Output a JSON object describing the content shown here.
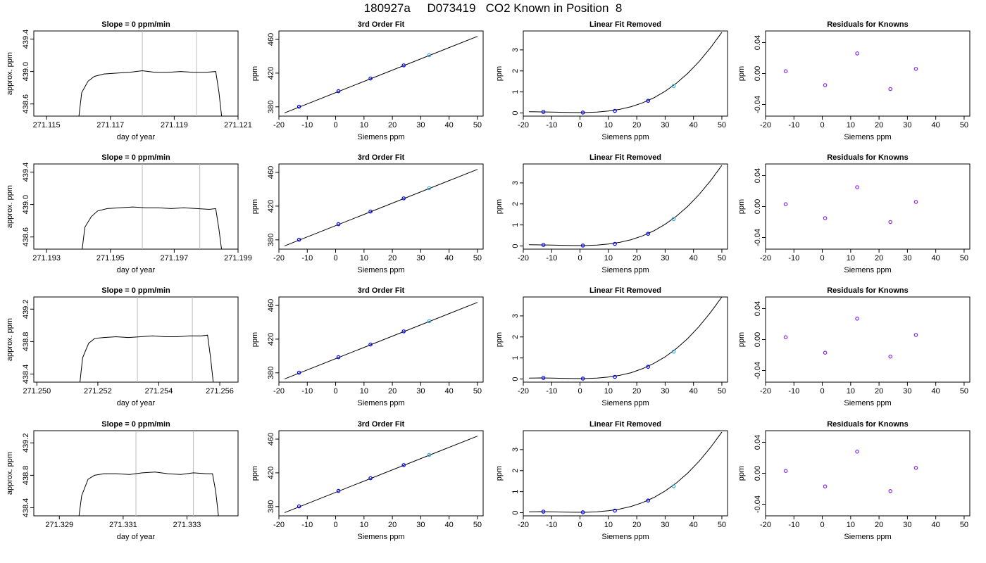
{
  "figure_title": "180927a     D073419   CO2 Known in Position  8",
  "colors": {
    "curve": "#000000",
    "point_blue": "#0000ff",
    "point_purple": "#8a2be2",
    "point_cyan": "#33aadd",
    "vline": "#bdbdbd"
  },
  "chart_data": [
    {
      "type": "line",
      "title": "Slope =  0  ppm/min",
      "xlabel": "day of year",
      "ylabel": "approx. ppm",
      "xlim": [
        271.1146,
        271.121
      ],
      "ylim": [
        438.45,
        439.5
      ],
      "xticks": [
        "271.115",
        "271.117",
        "271.119",
        "271.121"
      ],
      "yticks": [
        "438.6",
        "439.0",
        "439.4"
      ],
      "vlines": [
        271.118,
        271.1197
      ],
      "trace": {
        "x": [
          271.116,
          271.1161,
          271.1163,
          271.1165,
          271.1168,
          271.1172,
          271.1176,
          271.118,
          271.1184,
          271.1188,
          271.1192,
          271.1196,
          271.12,
          271.1203,
          271.1204,
          271.1205
        ],
        "y": [
          438.4,
          438.74,
          438.88,
          438.94,
          438.97,
          438.98,
          438.99,
          439.01,
          438.99,
          438.99,
          439.0,
          438.99,
          438.99,
          439.0,
          438.75,
          438.4
        ]
      }
    },
    {
      "type": "scatter",
      "title": "3rd Order Fit",
      "xlabel": "Siemens ppm",
      "ylabel": "ppm",
      "xlim": [
        -20,
        52
      ],
      "ylim": [
        369,
        470
      ],
      "xticks": [
        "-20",
        "-10",
        "0",
        "10",
        "20",
        "30",
        "40",
        "50"
      ],
      "yticks": [
        "380",
        "420",
        "460"
      ],
      "line": {
        "x": [
          -18,
          50
        ],
        "y": [
          372.8,
          463.6
        ]
      },
      "points": {
        "x": [
          -12.9,
          1.0,
          12.3,
          24.0,
          33.0
        ],
        "y": [
          380.2,
          398.6,
          413.6,
          429.2,
          441.3
        ]
      }
    },
    {
      "type": "line",
      "title": "Linear Fit Removed",
      "xlabel": "Siemens ppm",
      "ylabel": "ppm",
      "xlim": [
        -20,
        52
      ],
      "ylim": [
        -0.15,
        3.9
      ],
      "xticks": [
        "-20",
        "-10",
        "0",
        "10",
        "20",
        "30",
        "40",
        "50"
      ],
      "yticks": [
        "0",
        "1",
        "2",
        "3"
      ],
      "curve": {
        "x": [
          -18,
          -14,
          -10,
          -6,
          -2,
          2,
          6,
          10,
          14,
          18,
          22,
          26,
          30,
          34,
          38,
          42,
          46,
          50
        ],
        "y": [
          0.06,
          0.05,
          0.04,
          0.03,
          0.02,
          0.02,
          0.04,
          0.09,
          0.17,
          0.3,
          0.48,
          0.72,
          1.03,
          1.42,
          1.89,
          2.45,
          3.1,
          3.83
        ]
      },
      "points": {
        "x": [
          -12.9,
          1.0,
          12.3,
          24.0,
          33.0
        ],
        "y": [
          0.05,
          0.02,
          0.1,
          0.58,
          1.28
        ]
      }
    },
    {
      "type": "scatter",
      "title": "Residuals for Knowns",
      "xlabel": "Siemens ppm",
      "ylabel": "ppm",
      "xlim": [
        -20,
        52
      ],
      "ylim": [
        -0.055,
        0.055
      ],
      "xticks": [
        "-20",
        "-10",
        "0",
        "10",
        "20",
        "30",
        "40",
        "50"
      ],
      "yticks": [
        "-0.04",
        "0.00",
        "0.04"
      ],
      "points": {
        "x": [
          -12.9,
          1.0,
          12.3,
          24.0,
          33.0
        ],
        "y": [
          0.003,
          -0.015,
          0.026,
          -0.02,
          0.006
        ]
      }
    },
    {
      "type": "line",
      "title": "Slope =  0  ppm/min",
      "xlabel": "day of year",
      "ylabel": "approx. ppm",
      "xlim": [
        271.1926,
        271.199
      ],
      "ylim": [
        438.45,
        439.5
      ],
      "xticks": [
        "271.193",
        "271.195",
        "271.197",
        "271.199"
      ],
      "yticks": [
        "438.6",
        "439.0",
        "439.4"
      ],
      "vlines": [
        271.196,
        271.1978
      ],
      "trace": {
        "x": [
          271.1941,
          271.1942,
          271.1944,
          271.1946,
          271.1949,
          271.1953,
          271.1957,
          271.1961,
          271.1965,
          271.1969,
          271.1973,
          271.1977,
          271.1981,
          271.1983,
          271.1984,
          271.1985
        ],
        "y": [
          438.4,
          438.72,
          438.85,
          438.92,
          438.95,
          438.96,
          438.97,
          438.96,
          438.96,
          438.95,
          438.96,
          438.95,
          438.94,
          438.95,
          438.7,
          438.4
        ]
      }
    },
    {
      "type": "scatter",
      "title": "3rd Order Fit",
      "xlabel": "Siemens ppm",
      "ylabel": "ppm",
      "xlim": [
        -20,
        52
      ],
      "ylim": [
        369,
        470
      ],
      "xticks": [
        "-20",
        "-10",
        "0",
        "10",
        "20",
        "30",
        "40",
        "50"
      ],
      "yticks": [
        "380",
        "420",
        "460"
      ],
      "line": {
        "x": [
          -18,
          50
        ],
        "y": [
          372.8,
          463.6
        ]
      },
      "points": {
        "x": [
          -12.9,
          1.0,
          12.3,
          24.0,
          33.0
        ],
        "y": [
          380.2,
          398.6,
          413.6,
          429.2,
          441.3
        ]
      }
    },
    {
      "type": "line",
      "title": "Linear Fit Removed",
      "xlabel": "Siemens ppm",
      "ylabel": "ppm",
      "xlim": [
        -20,
        52
      ],
      "ylim": [
        -0.15,
        3.9
      ],
      "xticks": [
        "-20",
        "-10",
        "0",
        "10",
        "20",
        "30",
        "40",
        "50"
      ],
      "yticks": [
        "0",
        "1",
        "2",
        "3"
      ],
      "curve": {
        "x": [
          -18,
          -14,
          -10,
          -6,
          -2,
          2,
          6,
          10,
          14,
          18,
          22,
          26,
          30,
          34,
          38,
          42,
          46,
          50
        ],
        "y": [
          0.06,
          0.05,
          0.04,
          0.03,
          0.02,
          0.02,
          0.04,
          0.09,
          0.17,
          0.3,
          0.48,
          0.72,
          1.03,
          1.42,
          1.89,
          2.45,
          3.1,
          3.83
        ]
      },
      "points": {
        "x": [
          -12.9,
          1.0,
          12.3,
          24.0,
          33.0
        ],
        "y": [
          0.05,
          0.02,
          0.1,
          0.58,
          1.28
        ]
      }
    },
    {
      "type": "scatter",
      "title": "Residuals for Knowns",
      "xlabel": "Siemens ppm",
      "ylabel": "ppm",
      "xlim": [
        -20,
        52
      ],
      "ylim": [
        -0.055,
        0.055
      ],
      "xticks": [
        "-20",
        "-10",
        "0",
        "10",
        "20",
        "30",
        "40",
        "50"
      ],
      "yticks": [
        "-0.04",
        "0.00",
        "0.04"
      ],
      "points": {
        "x": [
          -12.9,
          1.0,
          12.3,
          24.0,
          33.0
        ],
        "y": [
          0.003,
          -0.015,
          0.025,
          -0.02,
          0.006
        ]
      }
    },
    {
      "type": "line",
      "title": "Slope =  0  ppm/min",
      "xlabel": "day of year",
      "ylabel": "approx. ppm",
      "xlim": [
        271.2499,
        271.2566
      ],
      "ylim": [
        438.3,
        439.35
      ],
      "xticks": [
        "271.250",
        "271.252",
        "271.254",
        "271.256"
      ],
      "yticks": [
        "438.4",
        "438.8",
        "439.2"
      ],
      "vlines": [
        271.2533,
        271.2551
      ],
      "trace": {
        "x": [
          271.2514,
          271.2515,
          271.2517,
          271.2519,
          271.2522,
          271.2526,
          271.253,
          271.2534,
          271.2538,
          271.2542,
          271.2546,
          271.255,
          271.2554,
          271.2556,
          271.2557,
          271.2558
        ],
        "y": [
          438.25,
          438.6,
          438.78,
          438.84,
          438.85,
          438.86,
          438.85,
          438.86,
          438.87,
          438.86,
          438.86,
          438.87,
          438.87,
          438.88,
          438.6,
          438.25
        ]
      }
    },
    {
      "type": "scatter",
      "title": "3rd Order Fit",
      "xlabel": "Siemens ppm",
      "ylabel": "ppm",
      "xlim": [
        -20,
        52
      ],
      "ylim": [
        369,
        470
      ],
      "xticks": [
        "-20",
        "-10",
        "0",
        "10",
        "20",
        "30",
        "40",
        "50"
      ],
      "yticks": [
        "380",
        "420",
        "460"
      ],
      "line": {
        "x": [
          -18,
          50
        ],
        "y": [
          372.8,
          463.6
        ]
      },
      "points": {
        "x": [
          -12.9,
          1.0,
          12.3,
          24.0,
          33.0
        ],
        "y": [
          380.2,
          398.6,
          413.6,
          429.2,
          441.3
        ]
      }
    },
    {
      "type": "line",
      "title": "Linear Fit Removed",
      "xlabel": "Siemens ppm",
      "ylabel": "ppm",
      "xlim": [
        -20,
        52
      ],
      "ylim": [
        -0.15,
        3.9
      ],
      "xticks": [
        "-20",
        "-10",
        "0",
        "10",
        "20",
        "30",
        "40",
        "50"
      ],
      "yticks": [
        "0",
        "1",
        "2",
        "3"
      ],
      "curve": {
        "x": [
          -18,
          -14,
          -10,
          -6,
          -2,
          2,
          6,
          10,
          14,
          18,
          22,
          26,
          30,
          34,
          38,
          42,
          46,
          50
        ],
        "y": [
          0.04,
          0.05,
          0.04,
          0.03,
          0.02,
          0.02,
          0.04,
          0.09,
          0.17,
          0.3,
          0.49,
          0.74,
          1.05,
          1.45,
          1.93,
          2.5,
          3.16,
          3.9
        ]
      },
      "points": {
        "x": [
          -12.9,
          1.0,
          12.3,
          24.0,
          33.0
        ],
        "y": [
          0.05,
          0.02,
          0.1,
          0.58,
          1.3
        ]
      }
    },
    {
      "type": "scatter",
      "title": "Residuals for Knowns",
      "xlabel": "Siemens ppm",
      "ylabel": "ppm",
      "xlim": [
        -20,
        52
      ],
      "ylim": [
        -0.055,
        0.055
      ],
      "xticks": [
        "-20",
        "-10",
        "0",
        "10",
        "20",
        "30",
        "40",
        "50"
      ],
      "yticks": [
        "-0.04",
        "0.00",
        "0.04"
      ],
      "points": {
        "x": [
          -12.9,
          1.0,
          12.3,
          24.0,
          33.0
        ],
        "y": [
          0.003,
          -0.017,
          0.027,
          -0.022,
          0.006
        ]
      }
    },
    {
      "type": "line",
      "title": "Slope =  0  ppm/min",
      "xlabel": "day of year",
      "ylabel": "approx. ppm",
      "xlim": [
        271.3282,
        271.3346
      ],
      "ylim": [
        438.3,
        439.35
      ],
      "xticks": [
        "271.329",
        "271.331",
        "271.333"
      ],
      "yticks": [
        "438.4",
        "438.8",
        "439.2"
      ],
      "vlines": [
        271.3314,
        271.3332
      ],
      "trace": {
        "x": [
          271.3296,
          271.3297,
          271.3299,
          271.3301,
          271.3304,
          271.3308,
          271.3312,
          271.3316,
          271.332,
          271.3324,
          271.3328,
          271.3332,
          271.3336,
          271.3338,
          271.3339,
          271.334
        ],
        "y": [
          438.25,
          438.55,
          438.75,
          438.8,
          438.82,
          438.82,
          438.81,
          438.83,
          438.84,
          438.82,
          438.81,
          438.83,
          438.82,
          438.82,
          438.6,
          438.25
        ]
      }
    },
    {
      "type": "scatter",
      "title": "3rd Order Fit",
      "xlabel": "Siemens ppm",
      "ylabel": "ppm",
      "xlim": [
        -20,
        52
      ],
      "ylim": [
        369,
        470
      ],
      "xticks": [
        "-20",
        "-10",
        "0",
        "10",
        "20",
        "30",
        "40",
        "50"
      ],
      "yticks": [
        "380",
        "420",
        "460"
      ],
      "line": {
        "x": [
          -18,
          50
        ],
        "y": [
          372.8,
          463.6
        ]
      },
      "points": {
        "x": [
          -12.9,
          1.0,
          12.3,
          24.0,
          33.0
        ],
        "y": [
          380.2,
          398.6,
          413.6,
          429.2,
          441.3
        ]
      }
    },
    {
      "type": "line",
      "title": "Linear Fit Removed",
      "xlabel": "Siemens ppm",
      "ylabel": "ppm",
      "xlim": [
        -20,
        52
      ],
      "ylim": [
        -0.15,
        3.9
      ],
      "xticks": [
        "-20",
        "-10",
        "0",
        "10",
        "20",
        "30",
        "40",
        "50"
      ],
      "yticks": [
        "0",
        "1",
        "2",
        "3"
      ],
      "curve": {
        "x": [
          -18,
          -14,
          -10,
          -6,
          -2,
          2,
          6,
          10,
          14,
          18,
          22,
          26,
          30,
          34,
          38,
          42,
          46,
          50
        ],
        "y": [
          0.04,
          0.05,
          0.04,
          0.03,
          0.02,
          0.02,
          0.04,
          0.09,
          0.17,
          0.3,
          0.48,
          0.72,
          1.03,
          1.42,
          1.89,
          2.45,
          3.1,
          3.83
        ]
      },
      "points": {
        "x": [
          -12.9,
          1.0,
          12.3,
          24.0,
          33.0
        ],
        "y": [
          0.05,
          0.02,
          0.1,
          0.58,
          1.26
        ]
      }
    },
    {
      "type": "scatter",
      "title": "Residuals for Knowns",
      "xlabel": "Siemens ppm",
      "ylabel": "ppm",
      "xlim": [
        -20,
        52
      ],
      "ylim": [
        -0.055,
        0.055
      ],
      "xticks": [
        "-20",
        "-10",
        "0",
        "10",
        "20",
        "30",
        "40",
        "50"
      ],
      "yticks": [
        "-0.04",
        "0.00",
        "0.04"
      ],
      "points": {
        "x": [
          -12.9,
          1.0,
          12.3,
          24.0,
          33.0
        ],
        "y": [
          0.003,
          -0.017,
          0.028,
          -0.023,
          0.007
        ]
      }
    }
  ]
}
